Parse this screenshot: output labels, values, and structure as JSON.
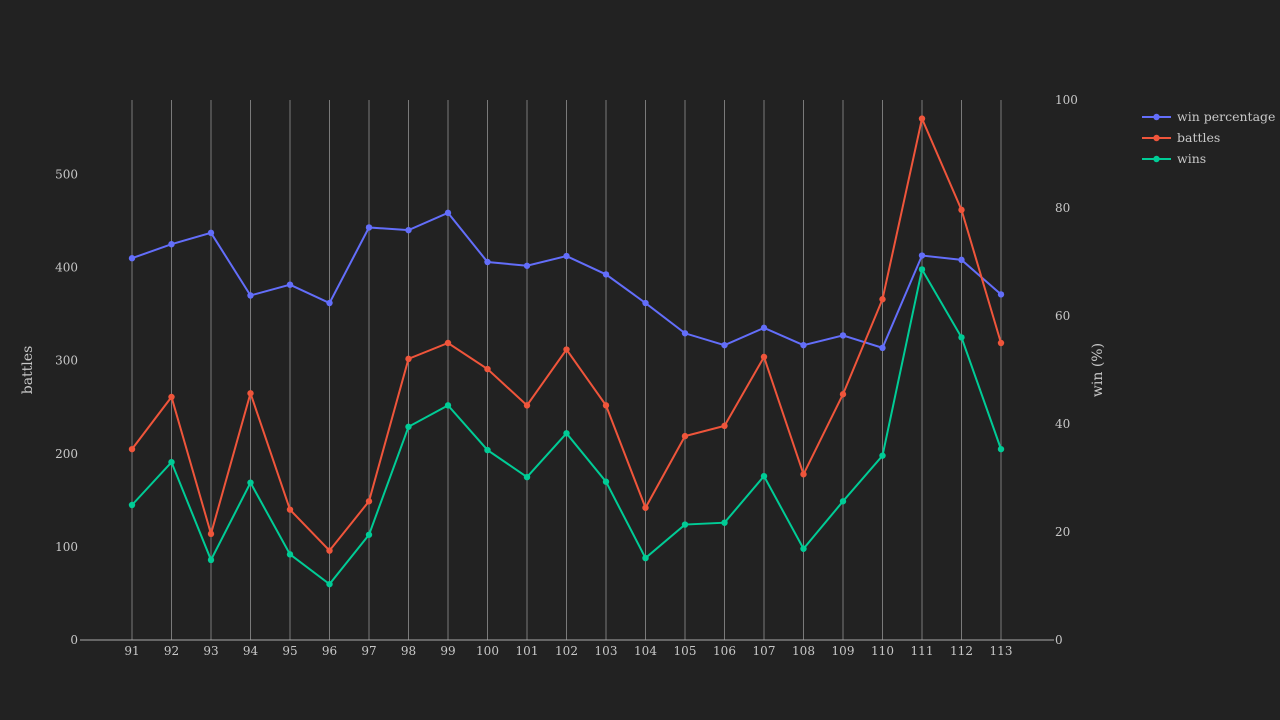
{
  "chart_data": {
    "type": "line",
    "x": [
      91,
      92,
      93,
      94,
      95,
      96,
      97,
      98,
      99,
      100,
      101,
      102,
      103,
      104,
      105,
      106,
      107,
      108,
      109,
      110,
      111,
      112,
      113
    ],
    "x_tick_labels": [
      "91",
      "92",
      "93",
      "94",
      "95",
      "96",
      "97",
      "98",
      "99",
      "100",
      "101",
      "102",
      "103",
      "104",
      "105",
      "106",
      "107",
      "108",
      "109",
      "110",
      "111",
      "112",
      "113"
    ],
    "y_left": {
      "label": "battles",
      "range": [
        0,
        580
      ],
      "ticks": [
        0,
        100,
        200,
        300,
        400,
        500
      ],
      "tick_labels": [
        "0",
        "100",
        "200",
        "300",
        "400",
        "500"
      ]
    },
    "y_right": {
      "label": "win (%)",
      "range": [
        0,
        100
      ],
      "ticks": [
        0,
        20,
        40,
        60,
        80,
        100
      ],
      "tick_labels": [
        "0",
        "20",
        "40",
        "60",
        "80",
        "100"
      ]
    },
    "grid": {
      "vertical": true,
      "horizontal": false
    },
    "legend_position": "top-right",
    "series": [
      {
        "name": "win percentage",
        "axis": "right",
        "color": "#636efa",
        "values": [
          70.7,
          73.3,
          75.4,
          63.8,
          65.8,
          62.4,
          76.4,
          75.9,
          79.1,
          70.0,
          69.3,
          71.1,
          67.7,
          62.4,
          56.8,
          54.6,
          57.8,
          54.6,
          56.4,
          54.1,
          71.2,
          70.4,
          64.0
        ]
      },
      {
        "name": "battles",
        "axis": "left",
        "color": "#ef553b",
        "values": [
          205,
          261,
          114,
          265,
          140,
          96,
          149,
          302,
          319,
          291,
          252,
          312,
          252,
          142,
          219,
          230,
          304,
          178,
          264,
          366,
          560,
          462,
          319
        ]
      },
      {
        "name": "wins",
        "axis": "left",
        "color": "#00cc96",
        "values": [
          145,
          191,
          86,
          169,
          92,
          60,
          113,
          229,
          252,
          204,
          175,
          222,
          170,
          88,
          124,
          126,
          176,
          98,
          149,
          198,
          398,
          325,
          205
        ]
      }
    ]
  }
}
